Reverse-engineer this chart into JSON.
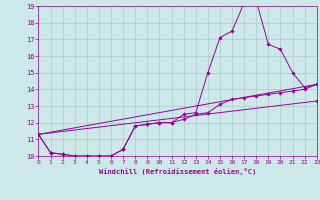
{
  "xlabel": "Windchill (Refroidissement éolien,°C)",
  "background_color": "#cce8e8",
  "grid_color": "#aacccc",
  "line_color": "#990099",
  "x_min": 0,
  "x_max": 23,
  "y_min": 10,
  "y_max": 19,
  "line1_x": [
    0,
    1,
    2,
    3,
    4,
    5,
    6,
    7,
    8,
    9,
    10,
    11,
    12,
    13,
    14,
    15,
    16,
    17,
    18,
    19,
    20,
    21,
    22,
    23
  ],
  "line1_y": [
    11.3,
    10.2,
    10.1,
    10.0,
    10.0,
    10.0,
    10.0,
    10.4,
    11.8,
    11.9,
    12.0,
    12.0,
    12.5,
    12.6,
    15.0,
    17.1,
    17.5,
    19.2,
    19.3,
    16.7,
    16.4,
    15.0,
    14.1,
    14.3
  ],
  "line2_x": [
    0,
    1,
    2,
    3,
    4,
    5,
    6,
    7,
    8,
    9,
    10,
    11,
    12,
    13,
    14,
    15,
    16,
    17,
    18,
    19,
    20,
    21,
    22,
    23
  ],
  "line2_y": [
    11.3,
    10.2,
    10.1,
    10.0,
    10.0,
    10.0,
    10.0,
    10.4,
    11.8,
    11.9,
    12.0,
    12.0,
    12.2,
    12.5,
    12.6,
    13.1,
    13.4,
    13.5,
    13.6,
    13.7,
    13.8,
    13.9,
    14.0,
    14.3
  ],
  "line3_x": [
    0,
    23
  ],
  "line3_y": [
    11.3,
    13.3
  ],
  "line4_x": [
    0,
    23
  ],
  "line4_y": [
    11.3,
    14.3
  ]
}
